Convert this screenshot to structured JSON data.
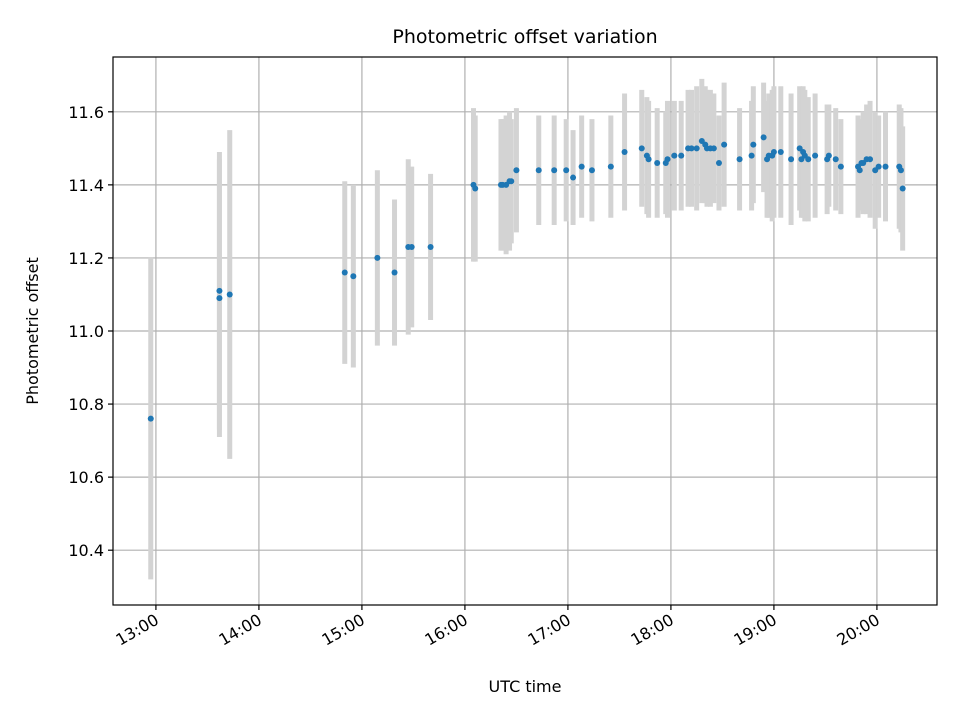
{
  "chart_data": {
    "type": "scatter",
    "title": "Photometric offset variation",
    "xlabel": "UTC time",
    "ylabel": "Photometric offset",
    "x_ticks": [
      "13:00",
      "14:00",
      "15:00",
      "16:00",
      "17:00",
      "18:00",
      "19:00",
      "20:00"
    ],
    "y_ticks": [
      "10.4",
      "10.6",
      "10.8",
      "11.0",
      "11.2",
      "11.4",
      "11.6"
    ],
    "xlim": [
      "12:35",
      "20:35"
    ],
    "ylim": [
      10.25,
      11.75
    ],
    "grid": true,
    "colors": {
      "point": "#1f77b4",
      "errorbar": "#d3d3d3",
      "grid": "#b0b0b0"
    },
    "series": [
      {
        "x": [
          "12:57",
          "13:37",
          "13:37",
          "13:43",
          "14:50",
          "14:55",
          "15:09",
          "15:19",
          "15:27",
          "15:29",
          "15:40",
          "16:05",
          "16:06",
          "16:21",
          "16:22",
          "16:24",
          "16:26",
          "16:27",
          "16:30",
          "16:43",
          "16:52",
          "16:59",
          "17:03",
          "17:08",
          "17:14",
          "17:25",
          "17:33",
          "17:43",
          "17:46",
          "17:47",
          "17:52",
          "17:57",
          "17:58",
          "18:02",
          "18:06",
          "18:10",
          "18:12",
          "18:15",
          "18:18",
          "18:20",
          "18:21",
          "18:23",
          "18:25",
          "18:28",
          "18:31",
          "18:40",
          "18:47",
          "18:48",
          "18:54",
          "18:56",
          "18:57",
          "18:59",
          "19:00",
          "19:04",
          "19:10",
          "19:15",
          "19:16",
          "19:17",
          "19:18",
          "19:20",
          "19:24",
          "19:31",
          "19:32",
          "19:36",
          "19:39",
          "19:49",
          "19:50",
          "19:51",
          "19:52",
          "19:54",
          "19:56",
          "19:59",
          "20:01",
          "20:05",
          "20:13",
          "20:14",
          "20:15"
        ],
        "y": [
          10.76,
          11.09,
          11.11,
          11.1,
          11.16,
          11.15,
          11.2,
          11.16,
          11.23,
          11.23,
          11.23,
          11.4,
          11.39,
          11.4,
          11.4,
          11.4,
          11.41,
          11.41,
          11.44,
          11.44,
          11.44,
          11.44,
          11.42,
          11.45,
          11.44,
          11.45,
          11.49,
          11.5,
          11.48,
          11.47,
          11.46,
          11.46,
          11.47,
          11.48,
          11.48,
          11.5,
          11.5,
          11.5,
          11.52,
          11.51,
          11.5,
          11.5,
          11.5,
          11.46,
          11.51,
          11.47,
          11.48,
          11.51,
          11.53,
          11.47,
          11.48,
          11.48,
          11.49,
          11.49,
          11.47,
          11.5,
          11.47,
          11.49,
          11.48,
          11.47,
          11.48,
          11.47,
          11.48,
          11.47,
          11.45,
          11.45,
          11.44,
          11.46,
          11.46,
          11.47,
          11.47,
          11.44,
          11.45,
          11.45,
          11.45,
          11.44,
          11.39
        ],
        "err": [
          0.44,
          0.38,
          0.38,
          0.45,
          0.25,
          0.25,
          0.24,
          0.2,
          0.24,
          0.22,
          0.2,
          0.21,
          0.2,
          0.18,
          0.18,
          0.19,
          0.19,
          0.17,
          0.17,
          0.15,
          0.15,
          0.14,
          0.13,
          0.14,
          0.14,
          0.14,
          0.16,
          0.16,
          0.16,
          0.16,
          0.15,
          0.14,
          0.16,
          0.15,
          0.15,
          0.16,
          0.16,
          0.17,
          0.17,
          0.16,
          0.16,
          0.16,
          0.15,
          0.13,
          0.17,
          0.14,
          0.15,
          0.16,
          0.15,
          0.16,
          0.17,
          0.18,
          0.18,
          0.18,
          0.18,
          0.17,
          0.16,
          0.18,
          0.18,
          0.17,
          0.17,
          0.15,
          0.14,
          0.14,
          0.13,
          0.14,
          0.11,
          0.12,
          0.14,
          0.15,
          0.16,
          0.16,
          0.14,
          0.15,
          0.17,
          0.17,
          0.17
        ]
      }
    ]
  }
}
